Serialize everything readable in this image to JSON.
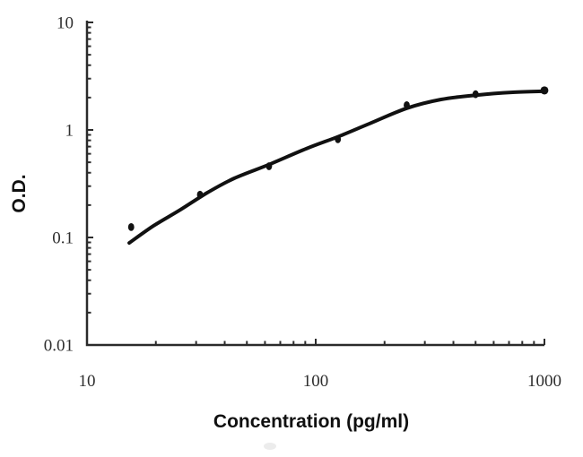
{
  "chart_data": {
    "type": "scatter",
    "title": "",
    "xlabel": "Concentration (pg/ml)",
    "ylabel": "O.D.",
    "x_scale": "log",
    "y_scale": "log",
    "xlim": [
      10,
      1000
    ],
    "ylim": [
      0.01,
      10
    ],
    "grid": false,
    "legend": null,
    "x_ticks": [
      {
        "value": 10,
        "label": "10"
      },
      {
        "value": 100,
        "label": "100"
      },
      {
        "value": 1000,
        "label": "1000"
      }
    ],
    "y_ticks": [
      {
        "value": 10,
        "label": "10"
      },
      {
        "value": 1,
        "label": "1"
      },
      {
        "value": 0.1,
        "label": "0.1"
      },
      {
        "value": 0.01,
        "label": "0.01"
      }
    ],
    "points": [
      {
        "concentration": 15.6,
        "od": 0.125
      },
      {
        "concentration": 31.2,
        "od": 0.25
      },
      {
        "concentration": 62.5,
        "od": 0.46
      },
      {
        "concentration": 125,
        "od": 0.82
      },
      {
        "concentration": 250,
        "od": 1.7
      },
      {
        "concentration": 500,
        "od": 2.15
      },
      {
        "concentration": 1000,
        "od": 2.33
      }
    ],
    "fit_curve": [
      [
        15.3,
        0.089
      ],
      [
        19.5,
        0.128
      ],
      [
        25.6,
        0.181
      ],
      [
        33.6,
        0.261
      ],
      [
        44,
        0.355
      ],
      [
        63,
        0.48
      ],
      [
        91,
        0.67
      ],
      [
        126,
        0.87
      ],
      [
        171,
        1.14
      ],
      [
        250,
        1.59
      ],
      [
        353,
        1.92
      ],
      [
        507,
        2.11
      ],
      [
        728,
        2.24
      ],
      [
        1000,
        2.29
      ]
    ],
    "colors": {
      "curve": "#111111",
      "points": "#111111",
      "axis": "#2b2b2b",
      "tick_label": "#2e2e2e",
      "axis_title": "#101010"
    }
  }
}
